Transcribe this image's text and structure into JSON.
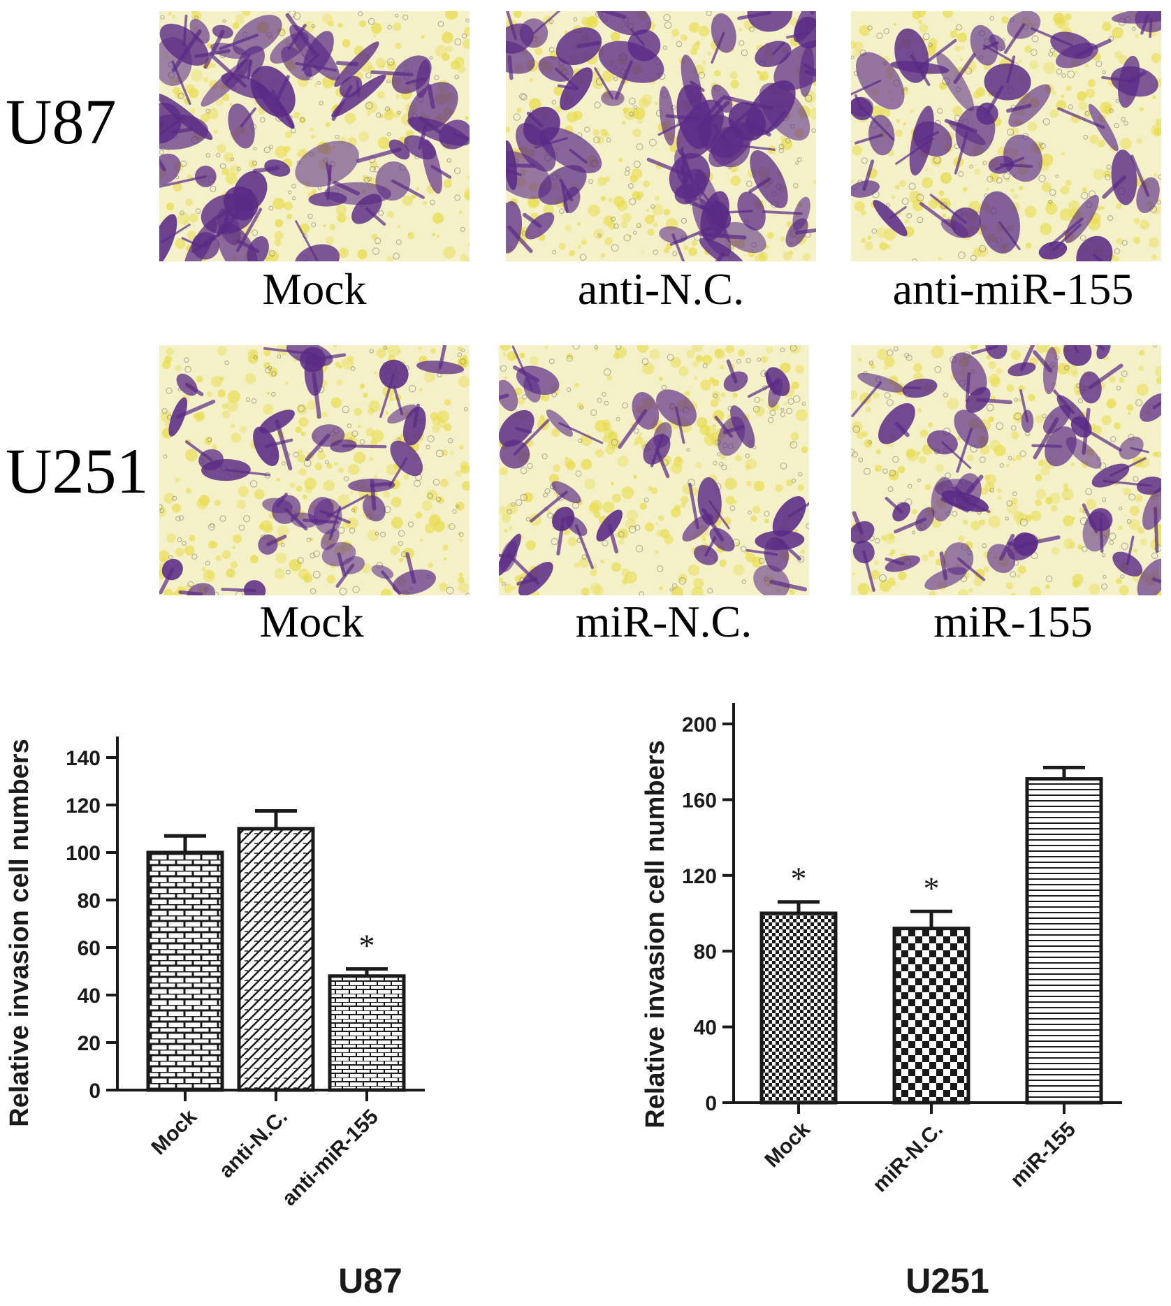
{
  "micrographs": {
    "rows": [
      {
        "label": "U87",
        "panels": [
          {
            "caption": "Mock",
            "stain_density": 0.85
          },
          {
            "caption": "anti-N.C.",
            "stain_density": 0.95
          },
          {
            "caption": "anti-miR-155",
            "stain_density": 0.55
          }
        ]
      },
      {
        "label": "U251",
        "panels": [
          {
            "caption": "Mock",
            "stain_density": 0.45
          },
          {
            "caption": "miR-N.C.",
            "stain_density": 0.4
          },
          {
            "caption": "miR-155",
            "stain_density": 0.7
          }
        ]
      }
    ],
    "colors": {
      "stain": "#5a2a86",
      "background": "#f4f0c8",
      "highlight": "#e8dc4a"
    }
  },
  "chart_data": [
    {
      "type": "bar",
      "title": "U87",
      "ylabel": "Relative invasion cell numbers",
      "ylim": [
        0,
        150
      ],
      "yticks": [
        "0",
        "20",
        "40",
        "60",
        "80",
        "100",
        "120",
        "140"
      ],
      "categories": [
        "Mock",
        "anti-N.C.",
        "anti-miR-155"
      ],
      "values": [
        100,
        110,
        48
      ],
      "errors": [
        7,
        7.5,
        3
      ],
      "significance": [
        "",
        "",
        "*"
      ],
      "patterns": [
        "brick",
        "diagonal-hatch",
        "small-brick"
      ]
    },
    {
      "type": "bar",
      "title": "U251",
      "ylabel": "Relative invasion cell numbers",
      "ylim": [
        0,
        200
      ],
      "yticks": [
        "0",
        "40",
        "80",
        "120",
        "160",
        "200"
      ],
      "categories": [
        "Mock",
        "miR-N.C.",
        "miR-155"
      ],
      "values": [
        100,
        92,
        171
      ],
      "errors": [
        6,
        9,
        6
      ],
      "significance": [
        "*",
        "*",
        ""
      ],
      "patterns": [
        "fine-checker",
        "checker",
        "horizontal-lines"
      ]
    }
  ]
}
